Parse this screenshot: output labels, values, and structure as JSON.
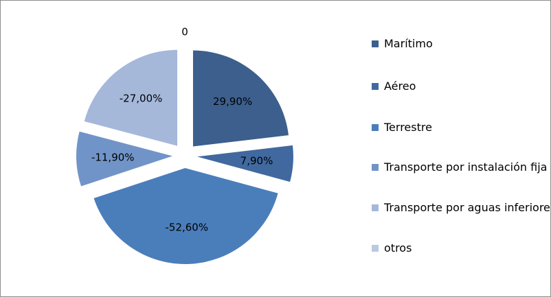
{
  "chart_data": {
    "type": "pie",
    "categories": [
      "Marítimo",
      "Aéreo",
      "Terrestre",
      "Transporte por instalación fija",
      "Transporte por aguas inferiores",
      "otros"
    ],
    "values": [
      29.9,
      7.9,
      -52.6,
      -11.9,
      -27.0,
      0
    ],
    "value_labels": [
      "29,90%",
      "7,90%",
      "-52,60%",
      "-11,90%",
      "-27,00%",
      "0"
    ],
    "colors": [
      "#3c5f8d",
      "#41699f",
      "#4a7ebb",
      "#7194c8",
      "#a5b8da",
      "#bac8e2"
    ],
    "legend": "right"
  }
}
